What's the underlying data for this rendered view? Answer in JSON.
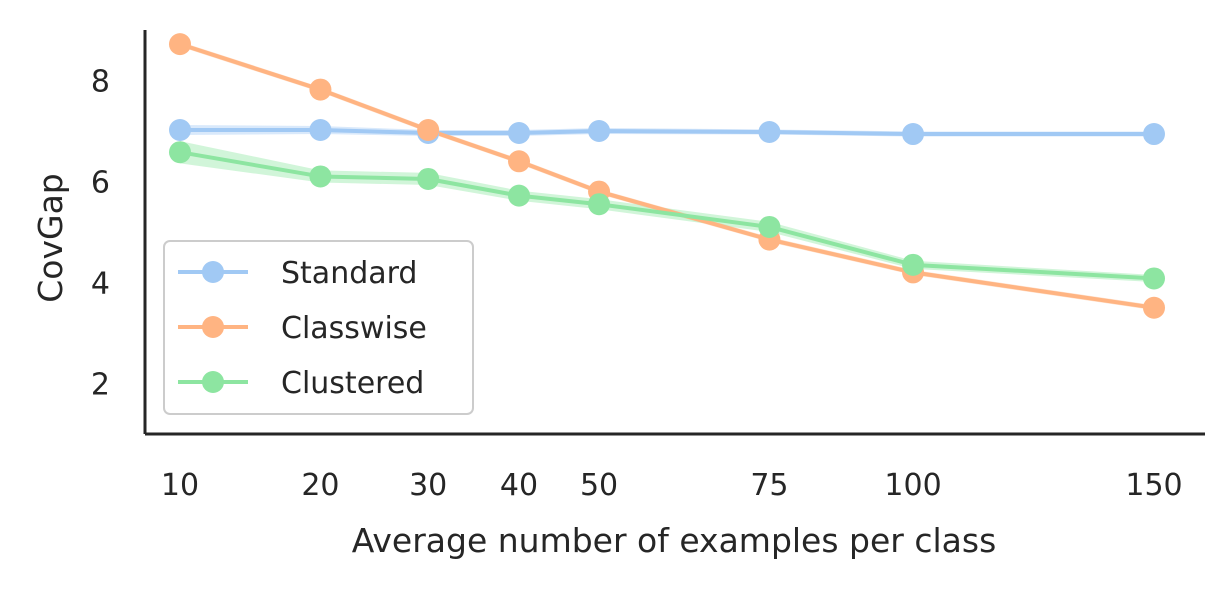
{
  "chart_data": {
    "type": "line",
    "xlabel": "Average number of examples per class",
    "ylabel": "CovGap",
    "x": [
      10,
      20,
      30,
      40,
      50,
      75,
      100,
      150
    ],
    "xticks": [
      "10",
      "20",
      "30",
      "40",
      "50",
      "75",
      "100",
      "150"
    ],
    "yticks": [
      "2",
      "4",
      "6",
      "8"
    ],
    "yticks_values": [
      2,
      4,
      6,
      8
    ],
    "ylim": [
      1,
      9
    ],
    "xscale": "sqrt",
    "grid": false,
    "legend_position": "lower-left",
    "series": [
      {
        "name": "Standard",
        "color": "#a1c9f4",
        "values": [
          7.02,
          7.02,
          6.96,
          6.96,
          7.0,
          6.98,
          6.94,
          6.94
        ],
        "band": [
          0.1,
          0.08,
          0.06,
          0.06,
          0.06,
          0.05,
          0.05,
          0.05
        ]
      },
      {
        "name": "Classwise",
        "color": "#ffb482",
        "values": [
          8.72,
          7.82,
          7.02,
          6.4,
          5.8,
          4.85,
          4.2,
          3.5
        ],
        "band": [
          0.05,
          0.05,
          0.05,
          0.05,
          0.05,
          0.05,
          0.05,
          0.05
        ]
      },
      {
        "name": "Clustered",
        "color": "#8de5a1",
        "values": [
          6.58,
          6.1,
          6.05,
          5.72,
          5.55,
          5.1,
          4.35,
          4.08
        ],
        "band": [
          0.22,
          0.12,
          0.12,
          0.1,
          0.1,
          0.1,
          0.08,
          0.07
        ]
      }
    ]
  }
}
